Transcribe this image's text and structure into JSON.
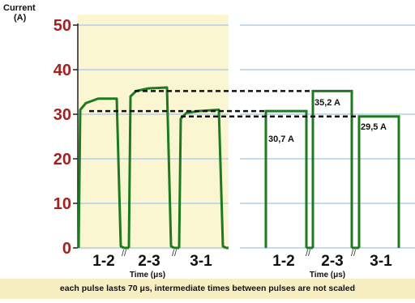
{
  "figure": {
    "y_axis_title_line1": "Current",
    "y_axis_title_line2": "(A)",
    "caption": "each pulse lasts 70 μs, intermediate times between pulses are not scaled",
    "colors": {
      "left_panel_bg": "#fbf6d2",
      "right_panel_bg": "#ffffff",
      "tick_labels": "#a22222",
      "gridline": "#b4cde8",
      "trace": "#1f7a1f",
      "dashed": "#111111",
      "caption_band": "#f7efc2"
    }
  },
  "chart_data": [
    {
      "type": "line",
      "panel": "measured",
      "ylabel": "Current (A)",
      "xlabel": "Time (μs)",
      "ylim": [
        0,
        50
      ],
      "yticks": [
        0,
        10,
        20,
        30,
        40,
        50
      ],
      "grid": true,
      "categories": [
        "1-2",
        "2-3",
        "3-1"
      ],
      "series": [
        {
          "pulses": [
            {
              "category": "1-2",
              "values": [
                0,
                31,
                32.5,
                33.5,
                33.5,
                0
              ]
            },
            {
              "category": "2-3",
              "values": [
                0,
                34,
                35.2,
                35.8,
                36,
                0
              ]
            },
            {
              "category": "3-1",
              "values": [
                0,
                29,
                30.3,
                30.7,
                31,
                0
              ]
            }
          ]
        }
      ]
    },
    {
      "type": "bar",
      "panel": "model",
      "xlabel": "Time (μs)",
      "ylim": [
        0,
        50
      ],
      "grid": true,
      "categories": [
        "1-2",
        "2-3",
        "3-1"
      ],
      "values": [
        30.7,
        35.2,
        29.5
      ],
      "value_labels": [
        "30,7 A",
        "35,2 A",
        "29,5 A"
      ],
      "dashed_reference_levels": [
        35.2,
        30.7,
        29.5
      ]
    }
  ]
}
